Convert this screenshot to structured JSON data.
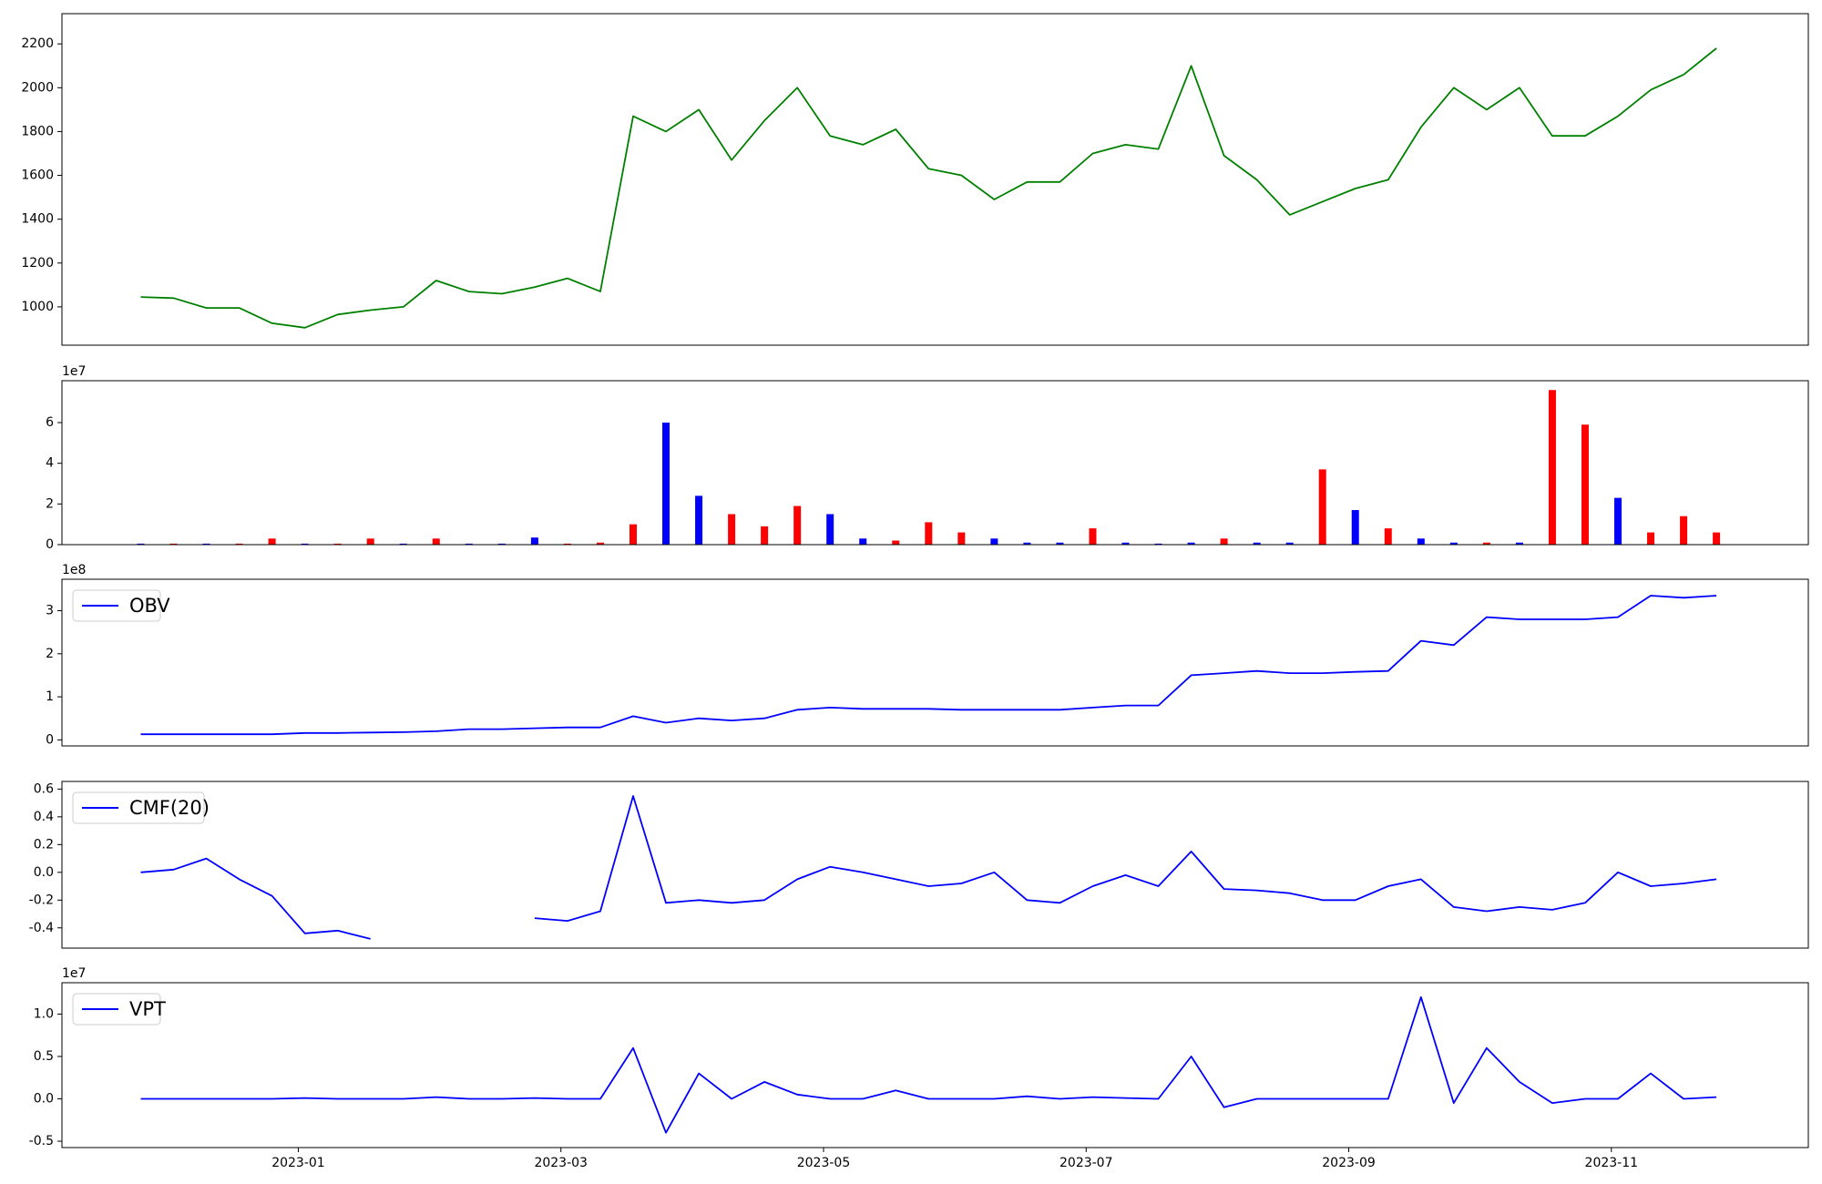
{
  "chart_data": [
    {
      "type": "line",
      "color": "#008000",
      "x": [
        -1.2,
        -0.95,
        -0.7,
        -0.45,
        -0.2,
        0.05,
        0.3,
        0.55,
        0.8,
        1.05,
        1.3,
        1.55,
        1.8,
        2.05,
        2.3,
        2.55,
        2.8,
        3.05,
        3.3,
        3.55,
        3.8,
        4.05,
        4.3,
        4.55,
        4.8,
        5.05,
        5.3,
        5.55,
        5.8,
        6.05,
        6.3,
        6.55,
        6.8,
        7.05,
        7.3,
        7.55,
        7.8,
        8.05,
        8.3,
        8.55,
        8.8,
        9.05,
        9.3,
        9.55,
        9.8,
        10.05,
        10.3,
        10.55,
        10.8
      ],
      "values": [
        1045,
        1040,
        995,
        995,
        925,
        905,
        965,
        985,
        1000,
        1120,
        1070,
        1060,
        1090,
        1130,
        1070,
        1870,
        1800,
        1900,
        1670,
        1850,
        2000,
        1780,
        1740,
        1810,
        1630,
        1600,
        1490,
        1570,
        1570,
        1700,
        1740,
        1720,
        2100,
        1690,
        1580,
        1420,
        1480,
        1540,
        1580,
        1820,
        2000,
        1900,
        2000,
        1780,
        1780,
        1870,
        1990,
        2060,
        2180
      ],
      "xlim": [
        -1.8,
        11.5
      ],
      "ylim": [
        825,
        2338
      ],
      "yticks": [
        1000,
        1200,
        1400,
        1600,
        1800,
        2000,
        2200
      ]
    },
    {
      "type": "bar",
      "offset_label": "1e7",
      "x": [
        -1.2,
        -0.95,
        -0.7,
        -0.45,
        -0.2,
        0.05,
        0.3,
        0.55,
        0.8,
        1.05,
        1.3,
        1.55,
        1.8,
        2.05,
        2.3,
        2.55,
        2.8,
        3.05,
        3.3,
        3.55,
        3.8,
        4.05,
        4.3,
        4.55,
        4.8,
        5.05,
        5.3,
        5.55,
        5.8,
        6.05,
        6.3,
        6.55,
        6.8,
        7.05,
        7.3,
        7.55,
        7.8,
        8.05,
        8.3,
        8.55,
        8.8,
        9.05,
        9.3,
        9.55,
        9.8,
        10.05,
        10.3,
        10.55,
        10.8
      ],
      "values": [
        0.05,
        0.05,
        0.05,
        0.05,
        0.3,
        0.05,
        0.05,
        0.3,
        0.05,
        0.3,
        0.05,
        0.05,
        0.35,
        0.05,
        0.1,
        1.0,
        6.0,
        2.4,
        1.5,
        0.9,
        1.9,
        1.5,
        0.3,
        0.2,
        1.1,
        0.6,
        0.3,
        0.1,
        0.1,
        0.8,
        0.1,
        0.05,
        0.1,
        0.3,
        0.1,
        0.1,
        3.7,
        1.7,
        0.8,
        0.3,
        0.1,
        0.1,
        0.1,
        7.6,
        5.9,
        2.3,
        0.6,
        1.4,
        0.6
      ],
      "colors": [
        "#0000ff",
        "#ff0000",
        "#0000ff",
        "#ff0000",
        "#ff0000",
        "#0000ff",
        "#ff0000",
        "#ff0000",
        "#0000ff",
        "#ff0000",
        "#0000ff",
        "#0000ff",
        "#0000ff",
        "#ff0000",
        "#ff0000",
        "#ff0000",
        "#0000ff",
        "#0000ff",
        "#ff0000",
        "#ff0000",
        "#ff0000",
        "#0000ff",
        "#0000ff",
        "#ff0000",
        "#ff0000",
        "#ff0000",
        "#0000ff",
        "#0000ff",
        "#0000ff",
        "#ff0000",
        "#0000ff",
        "#0000ff",
        "#0000ff",
        "#ff0000",
        "#0000ff",
        "#0000ff",
        "#ff0000",
        "#0000ff",
        "#ff0000",
        "#0000ff",
        "#0000ff",
        "#ff0000",
        "#0000ff",
        "#ff0000",
        "#ff0000",
        "#0000ff",
        "#ff0000",
        "#ff0000",
        "#ff0000"
      ],
      "xlim": [
        -1.8,
        11.5
      ],
      "ylim": [
        0,
        8.06
      ],
      "yticks": [
        0,
        2,
        4,
        6
      ]
    },
    {
      "type": "line",
      "offset_label": "1e8",
      "legend": "upper left",
      "x": [
        -1.2,
        -0.95,
        -0.7,
        -0.45,
        -0.2,
        0.05,
        0.3,
        0.55,
        0.8,
        1.05,
        1.3,
        1.55,
        1.8,
        2.05,
        2.3,
        2.55,
        2.8,
        3.05,
        3.3,
        3.55,
        3.8,
        4.05,
        4.3,
        4.55,
        4.8,
        5.05,
        5.3,
        5.55,
        5.8,
        6.05,
        6.3,
        6.55,
        6.8,
        7.05,
        7.3,
        7.55,
        7.8,
        8.05,
        8.3,
        8.55,
        8.8,
        9.05,
        9.3,
        9.55,
        9.8,
        10.05,
        10.3,
        10.55,
        10.8
      ],
      "series": [
        {
          "name": "OBV",
          "color": "#0000ff",
          "values": [
            0.13,
            0.13,
            0.13,
            0.13,
            0.13,
            0.16,
            0.16,
            0.17,
            0.18,
            0.2,
            0.25,
            0.25,
            0.27,
            0.29,
            0.29,
            0.55,
            0.4,
            0.5,
            0.45,
            0.5,
            0.7,
            0.75,
            0.72,
            0.72,
            0.72,
            0.7,
            0.7,
            0.7,
            0.7,
            0.75,
            0.8,
            0.8,
            1.5,
            1.55,
            1.6,
            1.55,
            1.55,
            1.58,
            1.6,
            2.3,
            2.2,
            2.85,
            2.8,
            2.8,
            2.8,
            2.85,
            3.35,
            3.3,
            3.35
          ]
        }
      ],
      "xlim": [
        -1.8,
        11.5
      ],
      "ylim": [
        -0.14,
        3.73
      ],
      "yticks": [
        0,
        1,
        2,
        3
      ]
    },
    {
      "type": "line",
      "legend": "upper left",
      "x": [
        -1.2,
        -0.95,
        -0.7,
        -0.45,
        -0.2,
        0.05,
        0.3,
        0.55,
        0.8,
        1.05,
        1.3,
        1.55,
        1.8,
        2.05,
        2.3,
        2.55,
        2.8,
        3.05,
        3.3,
        3.55,
        3.8,
        4.05,
        4.3,
        4.55,
        4.8,
        5.05,
        5.3,
        5.55,
        5.8,
        6.05,
        6.3,
        6.55,
        6.8,
        7.05,
        7.3,
        7.55,
        7.8,
        8.05,
        8.3,
        8.55,
        8.8,
        9.05,
        9.3,
        9.55,
        9.8,
        10.05,
        10.3,
        10.55,
        10.8
      ],
      "series": [
        {
          "name": "CMF(20)",
          "color": "#0000ff",
          "values": [
            0.0,
            0.02,
            0.1,
            -0.05,
            -0.17,
            -0.44,
            -0.42,
            -0.48,
            null,
            null,
            null,
            null,
            -0.33,
            -0.35,
            -0.28,
            0.55,
            -0.22,
            -0.2,
            -0.22,
            -0.2,
            -0.05,
            0.04,
            0.0,
            -0.05,
            -0.1,
            -0.08,
            0.0,
            -0.2,
            -0.22,
            -0.1,
            -0.02,
            -0.1,
            0.15,
            -0.12,
            -0.13,
            -0.15,
            -0.2,
            -0.2,
            -0.1,
            -0.05,
            -0.25,
            -0.28,
            -0.25,
            -0.27,
            -0.22,
            0.0,
            -0.1,
            -0.08,
            -0.05
          ]
        }
      ],
      "xlim": [
        -1.8,
        11.5
      ],
      "ylim": [
        -0.546,
        0.655
      ],
      "yticks": [
        -0.4,
        -0.2,
        {
          "value": 0,
          "label": "0.0"
        },
        0.2,
        0.4,
        0.6
      ]
    },
    {
      "type": "line",
      "offset_label": "1e7",
      "legend": "upper left",
      "x": [
        -1.2,
        -0.95,
        -0.7,
        -0.45,
        -0.2,
        0.05,
        0.3,
        0.55,
        0.8,
        1.05,
        1.3,
        1.55,
        1.8,
        2.05,
        2.3,
        2.55,
        2.8,
        3.05,
        3.3,
        3.55,
        3.8,
        4.05,
        4.3,
        4.55,
        4.8,
        5.05,
        5.3,
        5.55,
        5.8,
        6.05,
        6.3,
        6.55,
        6.8,
        7.05,
        7.3,
        7.55,
        7.8,
        8.05,
        8.3,
        8.55,
        8.8,
        9.05,
        9.3,
        9.55,
        9.8,
        10.05,
        10.3,
        10.55,
        10.8
      ],
      "series": [
        {
          "name": "VPT",
          "color": "#0000ff",
          "values": [
            0,
            0,
            0,
            0,
            0,
            0.01,
            0,
            0,
            0,
            0.02,
            0,
            0,
            0.01,
            0,
            0,
            0.6,
            -0.4,
            0.3,
            0,
            0.2,
            0.05,
            0,
            0,
            0.1,
            0,
            0,
            0,
            0.03,
            0,
            0.02,
            0.01,
            0,
            0.5,
            -0.1,
            0,
            0,
            0,
            0,
            0,
            1.2,
            -0.05,
            0.6,
            0.2,
            -0.05,
            0,
            0,
            0.3,
            0,
            0.02
          ]
        }
      ],
      "xlim": [
        -1.8,
        11.5
      ],
      "ylim": [
        -0.575,
        1.37
      ],
      "yticks": [
        -0.5,
        {
          "value": 0,
          "label": "0.0"
        },
        0.5,
        {
          "value": 1,
          "label": "1.0"
        }
      ],
      "xticks": [
        {
          "value": 0,
          "label": "2023-01"
        },
        {
          "value": 2,
          "label": "2023-03"
        },
        {
          "value": 4,
          "label": "2023-05"
        },
        {
          "value": 6,
          "label": "2023-07"
        },
        {
          "value": 8,
          "label": "2023-09"
        },
        {
          "value": 10,
          "label": "2023-11"
        }
      ]
    }
  ]
}
